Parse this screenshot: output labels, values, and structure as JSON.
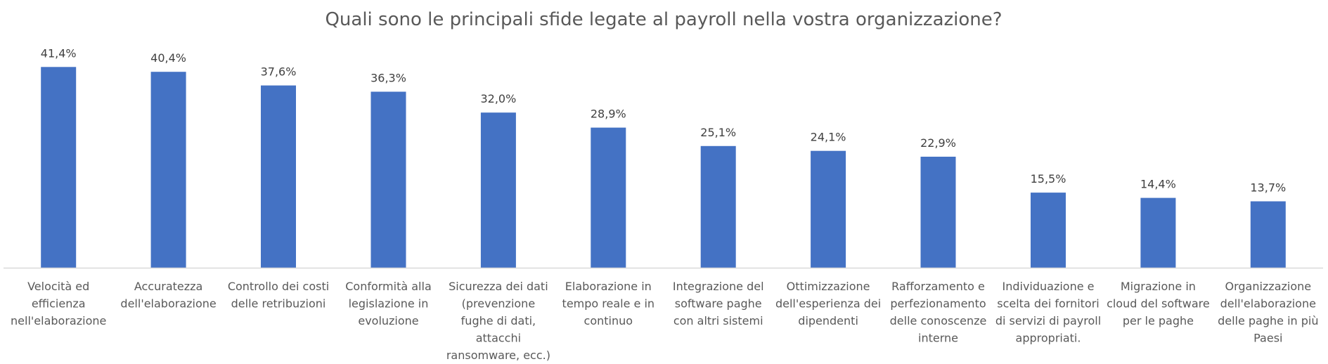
{
  "chart_data": {
    "type": "bar",
    "title": "Quali sono le principali sfide legate al payroll nella vostra organizzazione?",
    "xlabel": "",
    "ylabel": "",
    "ylim": [
      0,
      45
    ],
    "grid": false,
    "legend": "none",
    "bar_color": "#4472C4",
    "axis_color": "#D9D9D9",
    "categories": [
      [
        "Velocità ed",
        "efficienza",
        "nell'elaborazione"
      ],
      [
        "Accuratezza",
        "dell'elaborazione"
      ],
      [
        "Controllo dei costi",
        "delle retribuzioni"
      ],
      [
        "Conformità alla",
        "legislazione in",
        "evoluzione"
      ],
      [
        "Sicurezza dei dati",
        "(prevenzione",
        "fughe di dati,",
        "attacchi",
        "ransomware, ecc.)"
      ],
      [
        "Elaborazione in",
        "tempo reale e in",
        "continuo"
      ],
      [
        "Integrazione del",
        "software paghe",
        "con altri sistemi"
      ],
      [
        "Ottimizzazione",
        "dell'esperienza dei",
        "dipendenti"
      ],
      [
        "Rafforzamento e",
        "perfezionamento",
        "delle conoscenze",
        "interne"
      ],
      [
        "Individuazione e",
        "scelta dei fornitori",
        "di servizi di payroll",
        "appropriati."
      ],
      [
        "Migrazione in",
        "cloud del software",
        "per le paghe"
      ],
      [
        "Organizzazione",
        "dell'elaborazione",
        "delle paghe in più",
        "Paesi"
      ]
    ],
    "values": [
      41.4,
      40.4,
      37.6,
      36.3,
      32.0,
      28.9,
      25.1,
      24.1,
      22.9,
      15.5,
      14.4,
      13.7
    ],
    "data_labels": [
      "41,4%",
      "40,4%",
      "37,6%",
      "36,3%",
      "32,0%",
      "28,9%",
      "25,1%",
      "24,1%",
      "22,9%",
      "15,5%",
      "14,4%",
      "13,7%"
    ]
  }
}
